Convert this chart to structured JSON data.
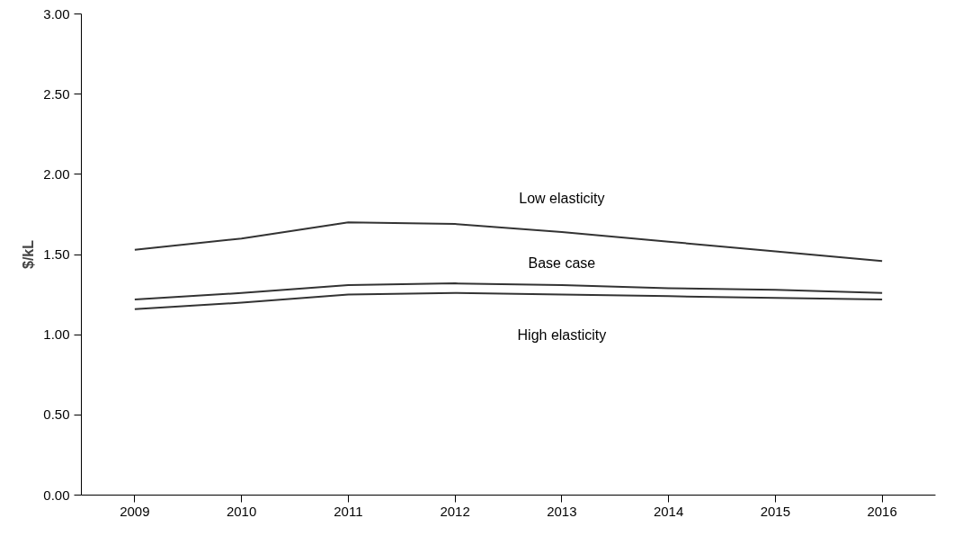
{
  "chart_data": {
    "type": "line",
    "ylabel": "$/kL",
    "categories": [
      "2009",
      "2010",
      "2011",
      "2012",
      "2013",
      "2014",
      "2015",
      "2016"
    ],
    "series": [
      {
        "name": "Low elasticity",
        "color": "#333333",
        "values": [
          1.53,
          1.6,
          1.7,
          1.69,
          1.64,
          1.58,
          1.52,
          1.46
        ]
      },
      {
        "name": "Base case",
        "color": "#333333",
        "values": [
          1.22,
          1.26,
          1.31,
          1.32,
          1.31,
          1.29,
          1.28,
          1.26
        ]
      },
      {
        "name": "High elasticity",
        "color": "#333333",
        "values": [
          1.16,
          1.2,
          1.25,
          1.26,
          1.25,
          1.24,
          1.23,
          1.22
        ]
      }
    ],
    "ylim": [
      0,
      3
    ],
    "yticks": [
      {
        "value": 0,
        "label": "0.00"
      },
      {
        "value": 0.5,
        "label": "0.50"
      },
      {
        "value": 1,
        "label": "1.00"
      },
      {
        "value": 1.5,
        "label": "1.50"
      },
      {
        "value": 2,
        "label": "2.00"
      },
      {
        "value": 2.5,
        "label": "2.50"
      },
      {
        "value": 3,
        "label": "3.00"
      }
    ],
    "grid": false,
    "line_style": "solid",
    "marker": "none"
  }
}
